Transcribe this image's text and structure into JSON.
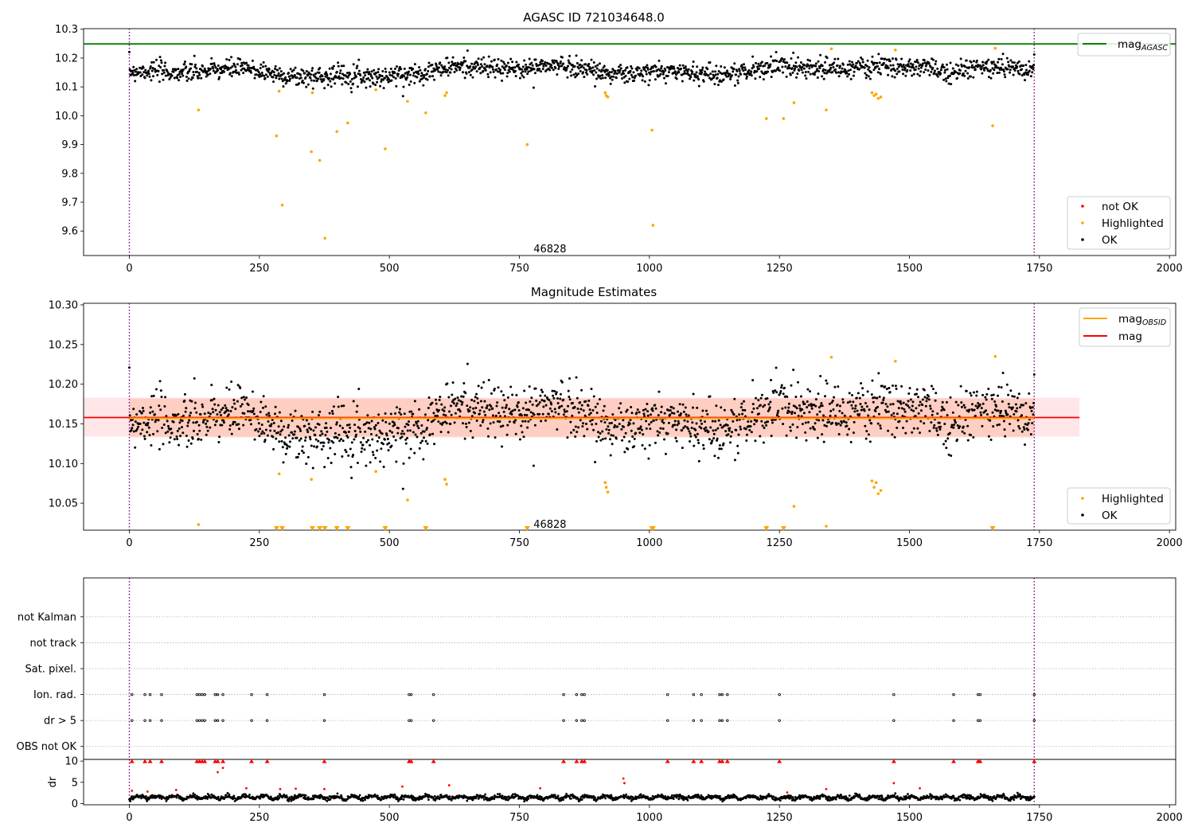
{
  "chart_data": [
    {
      "type": "scatter",
      "title": "AGASC ID 721034648.0",
      "xlim": [
        -88,
        2012
      ],
      "ylim": [
        9.515,
        10.302
      ],
      "xticks": [
        0,
        250,
        500,
        750,
        1000,
        1250,
        1500,
        1750,
        2000
      ],
      "yticks": [
        9.6,
        9.7,
        9.8,
        9.9,
        10.0,
        10.1,
        10.2,
        10.3
      ],
      "ytick_labels": [
        "9.6",
        "9.7",
        "9.8",
        "9.9",
        "10.0",
        "10.1",
        "10.2",
        "10.3"
      ],
      "vlines": [
        0,
        1740
      ],
      "hlines": [
        {
          "name": "mag_AGASC",
          "y": 10.249,
          "color": "#008000"
        }
      ],
      "text_annotation": {
        "x": 870,
        "y": 9.54,
        "text": "46828"
      },
      "legends": [
        {
          "position": "top-right",
          "entries": [
            {
              "label": "mag",
              "sub": "AGASC",
              "kind": "line",
              "color": "#008000"
            }
          ]
        },
        {
          "position": "bottom-right",
          "entries": [
            {
              "label": "not OK",
              "kind": "marker",
              "color": "#ff0000"
            },
            {
              "label": "Highlighted",
              "kind": "marker",
              "color": "#ffa500"
            },
            {
              "label": "OK",
              "kind": "marker",
              "color": "#000000"
            }
          ]
        }
      ],
      "series": [
        {
          "name": "OK",
          "color": "#000000",
          "kind": "scatter",
          "x_range": [
            0,
            1740
          ],
          "n_points": 1740,
          "mean": 10.158,
          "sd": 0.024
        },
        {
          "name": "Highlighted",
          "color": "#ffa500",
          "kind": "scatter",
          "x": [
            133,
            283,
            288,
            294,
            350,
            352,
            366,
            376,
            399,
            420,
            474,
            492,
            535,
            570,
            607,
            610,
            765,
            915,
            917,
            920,
            1005,
            1007,
            1225,
            1258,
            1278,
            1340,
            1350,
            1428,
            1432,
            1436,
            1440,
            1445,
            1473,
            1660,
            1665
          ],
          "y": [
            10.02,
            9.93,
            10.085,
            9.69,
            9.875,
            10.08,
            9.845,
            9.575,
            9.945,
            9.975,
            10.09,
            9.885,
            10.05,
            10.01,
            10.07,
            10.08,
            9.9,
            10.08,
            10.07,
            10.065,
            9.95,
            9.62,
            9.99,
            9.99,
            10.045,
            10.02,
            10.232,
            10.08,
            10.07,
            10.075,
            10.06,
            10.065,
            10.228,
            9.965,
            10.234
          ]
        },
        {
          "name": "not OK",
          "color": "#ff0000",
          "kind": "scatter",
          "x": [],
          "y": []
        }
      ]
    },
    {
      "type": "scatter",
      "title": "Magnitude Estimates",
      "xlim": [
        -88,
        2012
      ],
      "ylim": [
        10.016,
        10.302
      ],
      "xticks": [
        0,
        250,
        500,
        750,
        1000,
        1250,
        1500,
        1750,
        2000
      ],
      "yticks": [
        10.05,
        10.1,
        10.15,
        10.2,
        10.25,
        10.3
      ],
      "ytick_labels": [
        "10.05",
        "10.10",
        "10.15",
        "10.20",
        "10.25",
        "10.30"
      ],
      "vlines": [
        0,
        1740
      ],
      "hlines": [
        {
          "name": "mag_OBSID",
          "y": 10.157,
          "color": "#ffa500",
          "x_range": [
            0,
            1740
          ]
        },
        {
          "name": "mag",
          "y": 10.158,
          "color": "#ff0000"
        }
      ],
      "bands": [
        {
          "name": "mag_OBSID_band",
          "y_range": [
            10.133,
            10.182
          ],
          "x_range": [
            0,
            1740
          ],
          "color": "#ffa07a"
        },
        {
          "name": "mag_band",
          "y_range": [
            10.134,
            10.183
          ],
          "x_range": [
            -88,
            1827
          ],
          "color": "#ffb6c1"
        }
      ],
      "text_annotation": {
        "x": 870,
        "y": 10.024,
        "text": "46828"
      },
      "legends": [
        {
          "position": "top-right",
          "entries": [
            {
              "label": "mag",
              "sub": "OBSID",
              "kind": "line",
              "color": "#ffa500"
            },
            {
              "label": "mag",
              "kind": "line",
              "color": "#ff0000"
            }
          ]
        },
        {
          "position": "bottom-right",
          "entries": [
            {
              "label": "Highlighted",
              "kind": "marker",
              "color": "#ffa500"
            },
            {
              "label": "OK",
              "kind": "marker",
              "color": "#000000"
            }
          ]
        }
      ],
      "series": [
        {
          "name": "OK",
          "color": "#000000",
          "kind": "scatter",
          "x_range": [
            0,
            1740
          ],
          "n_points": 1740,
          "mean": 10.158,
          "sd": 0.024
        },
        {
          "name": "Highlighted",
          "color": "#ffa500",
          "kind": "scatter",
          "x": [
            133,
            288,
            350,
            474,
            535,
            607,
            610,
            915,
            917,
            920,
            1278,
            1340,
            1350,
            1428,
            1432,
            1436,
            1440,
            1445,
            1473,
            1665
          ],
          "y": [
            10.023,
            10.087,
            10.08,
            10.09,
            10.054,
            10.08,
            10.074,
            10.076,
            10.07,
            10.064,
            10.046,
            10.021,
            10.234,
            10.078,
            10.07,
            10.076,
            10.062,
            10.066,
            10.229,
            10.235
          ]
        },
        {
          "name": "Highlighted (below range)",
          "color": "#ffa500",
          "kind": "triangle-down",
          "x": [
            283,
            294,
            352,
            366,
            376,
            399,
            420,
            492,
            570,
            765,
            1005,
            1007,
            1225,
            1258,
            1660
          ],
          "y": [
            10.018,
            10.018,
            10.018,
            10.018,
            10.018,
            10.018,
            10.018,
            10.018,
            10.018,
            10.018,
            10.018,
            10.018,
            10.018,
            10.018,
            10.018
          ]
        }
      ]
    },
    {
      "type": "scatter",
      "title": "",
      "xlim": [
        -88,
        2012
      ],
      "ylim": [
        -0.5,
        6.5
      ],
      "categories": [
        "OBS not OK",
        "dr > 5",
        "Ion. rad.",
        "Sat. pixel.",
        "not track",
        "not Kalman"
      ],
      "category_values": [
        0,
        1,
        2,
        3,
        4,
        5
      ],
      "vlines": [
        0,
        1740
      ],
      "grid": "horizontal dotted",
      "flag_x": [
        5,
        30,
        40,
        62,
        130,
        135,
        140,
        145,
        165,
        170,
        180,
        235,
        265,
        375,
        538,
        542,
        585,
        835,
        860,
        870,
        875,
        1035,
        1085,
        1100,
        1135,
        1140,
        1150,
        1250,
        1470,
        1585,
        1632,
        1636,
        1740
      ],
      "series": [
        {
          "name": "dr > 5",
          "category": "dr > 5",
          "x_ref": "flag_x"
        },
        {
          "name": "Ion. rad.",
          "category": "Ion. rad.",
          "x_ref": "flag_x"
        }
      ]
    },
    {
      "type": "scatter",
      "title": "",
      "ylabel": "dr",
      "xlim": [
        -88,
        2012
      ],
      "ylim": [
        -0.3,
        10.4
      ],
      "xticks": [
        0,
        250,
        500,
        750,
        1000,
        1250,
        1500,
        1750,
        2000
      ],
      "yticks": [
        0,
        5,
        10
      ],
      "vlines": [
        0,
        1740
      ],
      "series": [
        {
          "name": "dr",
          "color": "#000000",
          "kind": "scatter",
          "x_range": [
            0,
            1740
          ],
          "n_points": 1740,
          "mean": 1.2,
          "sd": 0.5
        },
        {
          "name": "dr > 5 (clipped)",
          "color": "#ff0000",
          "kind": "triangle-up",
          "x_ref": "flag_x",
          "y": 10
        },
        {
          "name": "dr (flagged)",
          "color": "#ff0000",
          "kind": "scatter",
          "x": [
            5,
            35,
            90,
            170,
            180,
            225,
            290,
            320,
            375,
            525,
            615,
            790,
            950,
            952,
            1265,
            1340,
            1470,
            1520
          ],
          "y": [
            3.0,
            2.8,
            3.2,
            7.4,
            8.4,
            3.6,
            3.4,
            3.5,
            3.4,
            4.0,
            4.3,
            3.6,
            5.9,
            4.8,
            2.6,
            3.4,
            4.8,
            3.6
          ]
        }
      ]
    }
  ]
}
